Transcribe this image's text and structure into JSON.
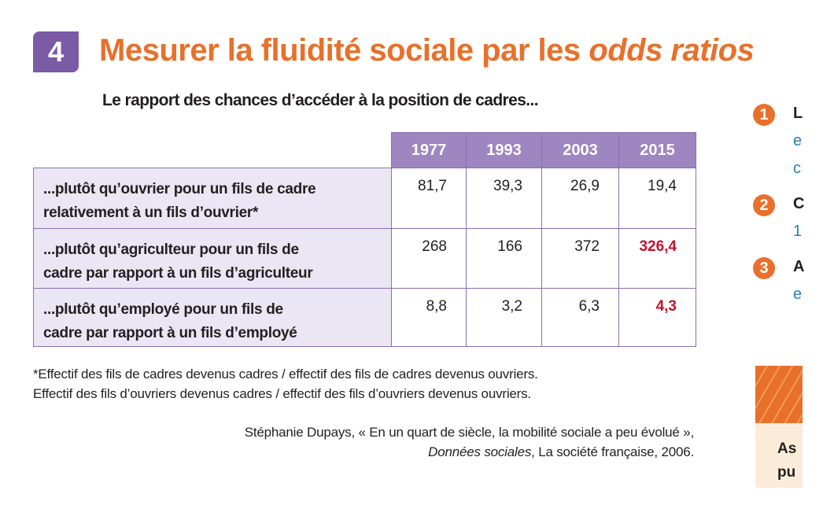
{
  "badge": "4",
  "header": {
    "title": "Mesurer la fluidité sociale par les",
    "title_italic": "odds ratios"
  },
  "subtitle": "Le rapport des chances d’accéder à la position de cadres...",
  "table": {
    "columns": [
      "1977",
      "1993",
      "2003",
      "2015"
    ],
    "rows": [
      {
        "label": [
          "...plutôt qu’ouvrier pour un fils de cadre",
          "relativement à un fils d’ouvrier*"
        ],
        "cells": [
          {
            "text": "81,7",
            "color": "#231f20"
          },
          {
            "text": "39,3",
            "color": "#231f20"
          },
          {
            "text": "26,9",
            "color": "#231f20"
          },
          {
            "text": "19,4",
            "color": "#231f20"
          }
        ]
      },
      {
        "label": [
          "...plutôt qu’agriculteur pour un fils de",
          "cadre par rapport à un fils d’agriculteur"
        ],
        "cells": [
          {
            "text": "268",
            "color": "#231f20"
          },
          {
            "text": "166",
            "color": "#231f20"
          },
          {
            "text": "372",
            "color": "#231f20"
          },
          {
            "text": "326,4",
            "color": "#c8102e"
          }
        ]
      },
      {
        "label": [
          "...plutôt qu’employé pour un fils de",
          "cadre par rapport à un fils d’employé"
        ],
        "cells": [
          {
            "text": "8,8",
            "color": "#231f20"
          },
          {
            "text": "3,2",
            "color": "#231f20"
          },
          {
            "text": "6,3",
            "color": "#231f20"
          },
          {
            "text": "4,3",
            "color": "#c8102e"
          }
        ]
      }
    ]
  },
  "footnote": [
    "*Effectif des fils de cadres devenus cadres / effectif des fils de cadres devenus ouvriers.",
    "Effectif des fils d’ouvriers devenus cadres / effectif des fils d’ouvriers devenus ouvriers."
  ],
  "source": {
    "line1": "Stéphanie Dupays, « En un quart de siècle, la mobilité sociale a peu évolué »,",
    "line2_italic": "Données sociales",
    "line2_rest": ", La société française, 2006."
  },
  "side": {
    "items": [
      {
        "number": "1",
        "lines": [
          "L",
          "e",
          "c"
        ]
      },
      {
        "number": "2",
        "lines": [
          "C",
          "1"
        ]
      },
      {
        "number": "3",
        "lines": [
          "A",
          "e"
        ]
      }
    ],
    "box": {
      "lines": [
        "As",
        "pu"
      ]
    }
  }
}
